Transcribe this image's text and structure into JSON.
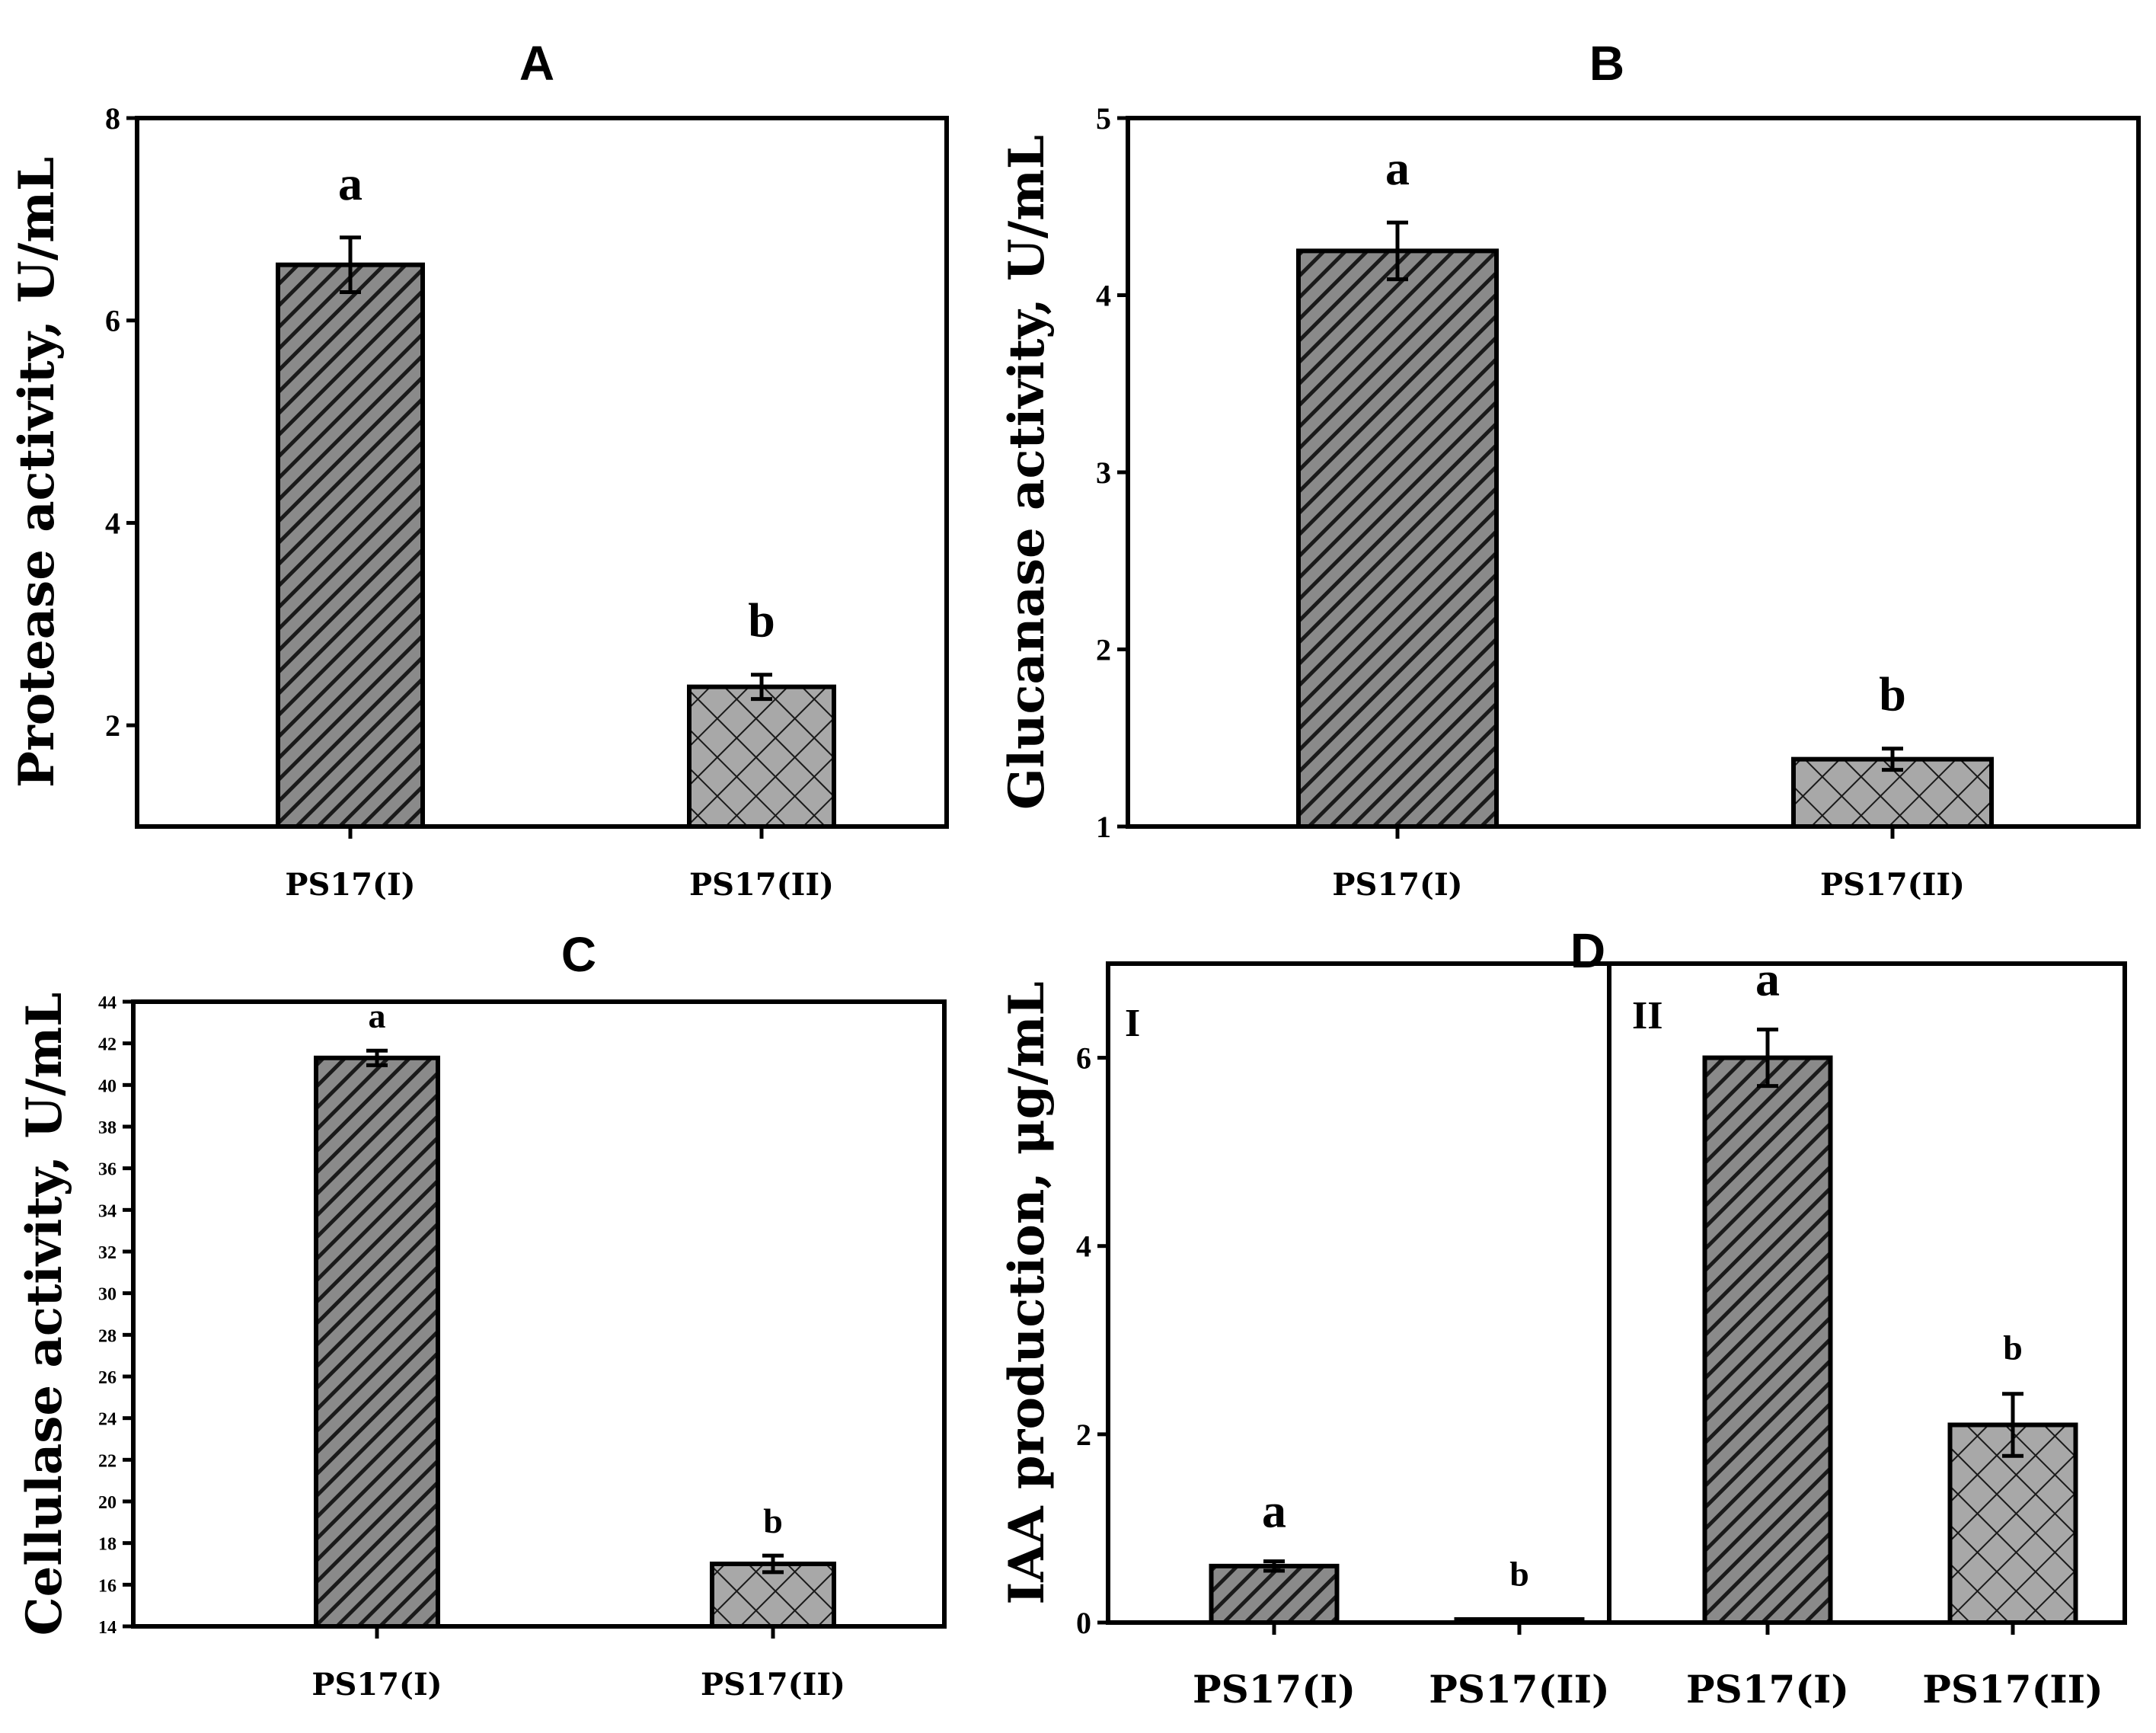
{
  "chart_data": [
    {
      "id": "A",
      "type": "bar",
      "title": "A",
      "ylabel": "Protease activity, U/mL",
      "xlabel": "",
      "categories": [
        "PS17(I)",
        "PS17(II)"
      ],
      "values": [
        6.55,
        2.38
      ],
      "errors": [
        0.27,
        0.12
      ],
      "significance": [
        "a",
        "b"
      ],
      "patterns": [
        "diagonal",
        "crosshatch"
      ],
      "ylim": [
        1,
        8
      ],
      "yticks": [
        2,
        4,
        6,
        8
      ]
    },
    {
      "id": "B",
      "type": "bar",
      "title": "B",
      "ylabel": "Glucanase activity, U/mL",
      "xlabel": "",
      "categories": [
        "PS17(I)",
        "PS17(II)"
      ],
      "values": [
        4.25,
        1.38
      ],
      "errors": [
        0.16,
        0.06
      ],
      "significance": [
        "a",
        "b"
      ],
      "patterns": [
        "diagonal",
        "crosshatch"
      ],
      "ylim": [
        1,
        5
      ],
      "yticks": [
        1,
        2,
        3,
        4,
        5
      ]
    },
    {
      "id": "C",
      "type": "bar",
      "title": "C",
      "ylabel": "Cellulase activity, U/mL",
      "xlabel": "",
      "categories": [
        "PS17(I)",
        "PS17(II)"
      ],
      "values": [
        41.3,
        17.0
      ],
      "errors": [
        0.35,
        0.4
      ],
      "significance": [
        "a",
        "b"
      ],
      "patterns": [
        "diagonal",
        "crosshatch"
      ],
      "ylim": [
        14,
        44
      ],
      "yticks": [
        14,
        16,
        18,
        20,
        22,
        24,
        26,
        28,
        30,
        32,
        34,
        36,
        38,
        40,
        42,
        44
      ]
    },
    {
      "id": "D",
      "type": "bar",
      "title": "D",
      "ylabel": "IAA production, μg/mL",
      "xlabel": "",
      "groups": [
        "I",
        "II"
      ],
      "categories": [
        "PS17(I)",
        "PS17(II)",
        "PS17(I)",
        "PS17(II)"
      ],
      "group_of": [
        0,
        0,
        1,
        1
      ],
      "values": [
        0.6,
        0.03,
        6.0,
        2.1
      ],
      "errors": [
        0.05,
        0.0,
        0.3,
        0.33
      ],
      "significance": [
        "a",
        "b",
        "a",
        "b"
      ],
      "patterns": [
        "diagonal",
        "diagonal",
        "diagonal",
        "crosshatch"
      ],
      "ylim": [
        0,
        7
      ],
      "yticks": [
        0,
        2,
        4,
        6
      ]
    }
  ]
}
